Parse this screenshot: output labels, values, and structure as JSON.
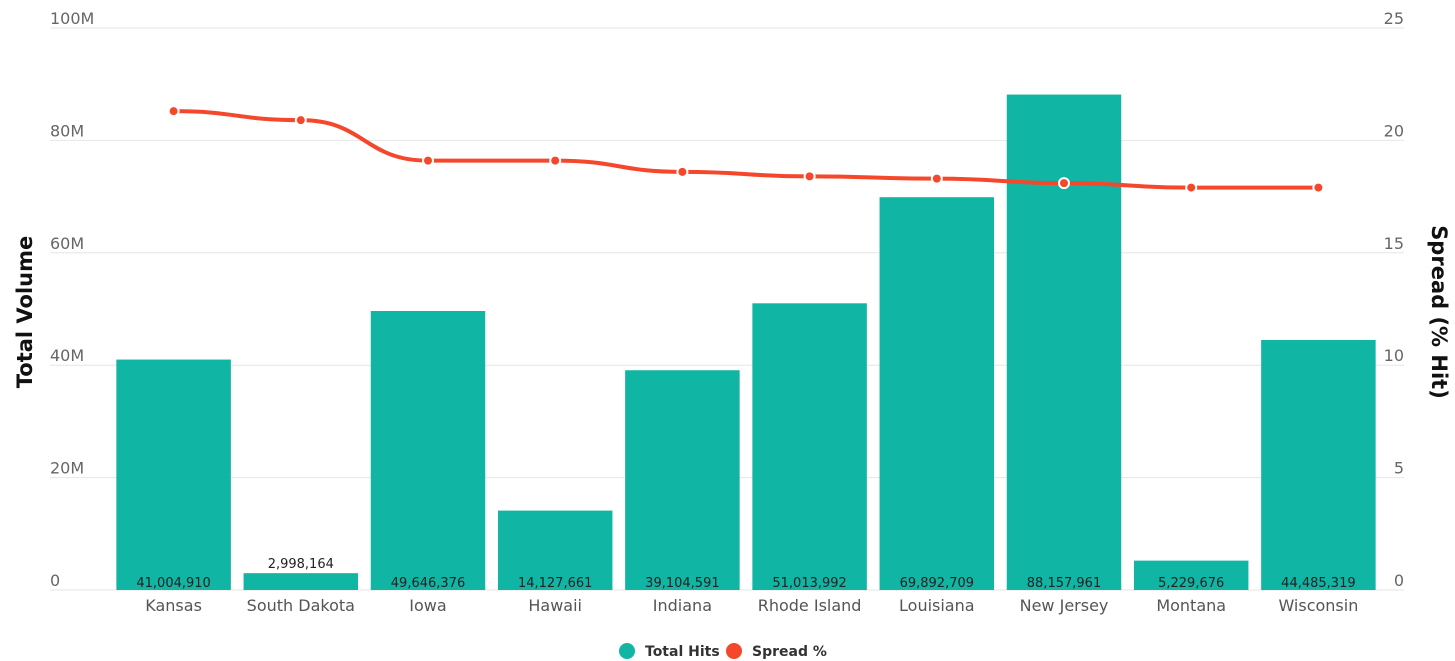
{
  "chart_data": {
    "type": "bar",
    "categories": [
      "Kansas",
      "South Dakota",
      "Iowa",
      "Hawaii",
      "Indiana",
      "Rhode Island",
      "Louisiana",
      "New Jersey",
      "Montana",
      "Wisconsin"
    ],
    "series": [
      {
        "name": "Total Hits",
        "type": "bar",
        "axis": "left",
        "color": "#10b5a4",
        "values": [
          41004910,
          2998164,
          49646376,
          14127661,
          39104591,
          51013992,
          69892709,
          88157961,
          5229676,
          44485319
        ],
        "value_labels": [
          "41,004,910",
          "2,998,164",
          "49,646,376",
          "14,127,661",
          "39,104,591",
          "51,013,992",
          "69,892,709",
          "88,157,961",
          "5,229,676",
          "44,485,319"
        ]
      },
      {
        "name": "Spread %",
        "type": "line",
        "axis": "right",
        "color": "#f4472b",
        "values": [
          21.3,
          20.9,
          19.1,
          19.1,
          18.6,
          18.4,
          18.3,
          18.1,
          17.9,
          17.9
        ]
      }
    ],
    "ylabel": "Total Volume",
    "y2label": "Spread (% Hit)",
    "ylim": [
      0,
      100000000
    ],
    "y2lim": [
      0,
      25
    ],
    "yticks": [
      "0",
      "20M",
      "40M",
      "60M",
      "80M",
      "100M"
    ],
    "y2ticks": [
      "0",
      "5",
      "10",
      "15",
      "20",
      "25"
    ],
    "grid": true,
    "legend_position": "bottom-center"
  }
}
